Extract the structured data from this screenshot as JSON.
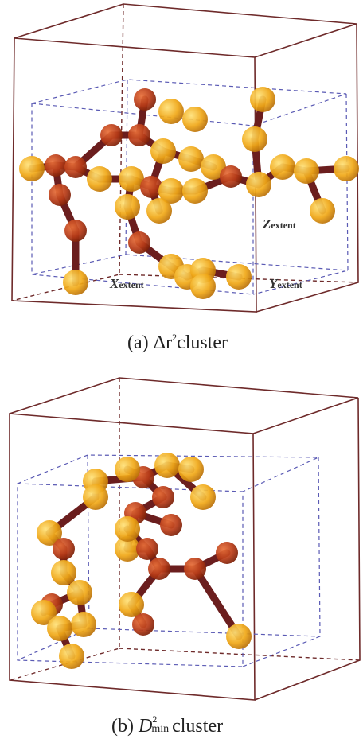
{
  "panels": [
    {
      "caption": {
        "label": "(a)",
        "symbol": "Δr",
        "superscript": "2",
        "rest": "cluster"
      },
      "axis_labels": [
        {
          "var": "X",
          "sub": "extent"
        },
        {
          "var": "Y",
          "sub": "extent"
        },
        {
          "var": "Z",
          "sub": "extent"
        }
      ]
    },
    {
      "caption": {
        "label": "(b)",
        "symbol": "D",
        "superscript": "2",
        "subscript": "min",
        "rest": "cluster"
      }
    }
  ]
}
